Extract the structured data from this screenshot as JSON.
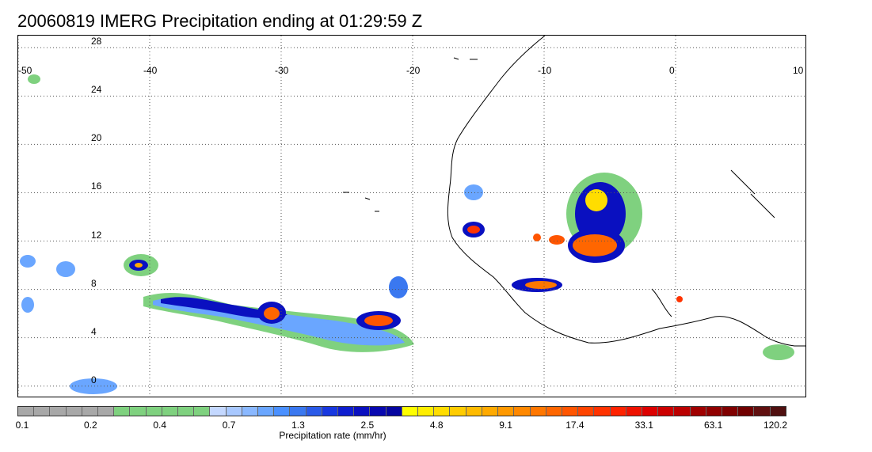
{
  "title": "20060819 IMERG Precipitation ending at 01:29:59 Z",
  "map": {
    "lon_range": [
      -50,
      10
    ],
    "lat_range": [
      -1,
      29
    ],
    "lat_labels": [
      "28",
      "24",
      "20",
      "16",
      "12",
      "8",
      "4",
      "0"
    ],
    "lat_values": [
      28,
      24,
      20,
      16,
      12,
      8,
      4,
      0
    ],
    "lon_labels": [
      "-50",
      "-40",
      "-30",
      "-20",
      "-10",
      "0",
      "10"
    ],
    "lon_values": [
      -50,
      -40,
      -30,
      -20,
      -10,
      0,
      10
    ],
    "gridlines": "dotted",
    "coastline_color": "#000000"
  },
  "colorbar": {
    "unit_label": "Precipitation rate (mm/hr)",
    "tick_labels": [
      "0.1",
      "0.2",
      "0.4",
      "0.7",
      "1.3",
      "2.5",
      "4.8",
      "9.1",
      "17.4",
      "33.1",
      "63.1",
      "120.2"
    ],
    "colors": [
      "#a8a8a8",
      "#a8a8a8",
      "#a8a8a8",
      "#a8a8a8",
      "#a8a8a8",
      "#a8a8a8",
      "#7fd17f",
      "#7fd17f",
      "#7fd17f",
      "#7fd17f",
      "#7fd17f",
      "#7fd17f",
      "#c4d8ff",
      "#a8c8ff",
      "#8ab8ff",
      "#6aa6ff",
      "#4a90ff",
      "#3a78f0",
      "#2a5ae8",
      "#1838e0",
      "#0e1ed0",
      "#0a10c0",
      "#0808b0",
      "#0606a0",
      "#ffff00",
      "#ffee00",
      "#ffdd00",
      "#ffcc00",
      "#ffbb00",
      "#ffaa00",
      "#ff9900",
      "#ff8800",
      "#ff7700",
      "#ff6600",
      "#ff5500",
      "#ff4400",
      "#ff3300",
      "#ff2200",
      "#ee1100",
      "#dd0000",
      "#cc0000",
      "#bb0000",
      "#a00000",
      "#900000",
      "#800000",
      "#700000",
      "#601010",
      "#501010"
    ]
  },
  "chart_data": {
    "type": "heatmap",
    "title": "20060819 IMERG Precipitation ending at 01:29:59 Z",
    "xlabel": "",
    "ylabel": "",
    "colorbar_label": "Precipitation rate (mm/hr)",
    "colorbar_ticks": [
      0.1,
      0.2,
      0.4,
      0.7,
      1.3,
      2.5,
      4.8,
      9.1,
      17.4,
      33.1,
      63.1,
      120.2
    ],
    "xlim": [
      -50,
      10
    ],
    "ylim": [
      -1,
      29
    ],
    "precip_cells": [
      {
        "lon": -34.5,
        "lat": 7.5,
        "intensity": 2.5
      },
      {
        "lon": -30.5,
        "lat": 6.8,
        "intensity": 17.4
      },
      {
        "lon": -28.0,
        "lat": 6.2,
        "intensity": 4.8
      },
      {
        "lon": -22.5,
        "lat": 6.5,
        "intensity": 33.1
      },
      {
        "lon": -24.0,
        "lat": 6.0,
        "intensity": 9.1
      },
      {
        "lon": -38.5,
        "lat": 8.0,
        "intensity": 4.8
      },
      {
        "lon": -40.5,
        "lat": 11.5,
        "intensity": 4.8
      },
      {
        "lon": -5.2,
        "lat": 16.5,
        "intensity": 9.1
      },
      {
        "lon": -5.5,
        "lat": 13.0,
        "intensity": 33.1
      },
      {
        "lon": -9.8,
        "lat": 9.3,
        "intensity": 9.1
      },
      {
        "lon": -15.0,
        "lat": 14.0,
        "intensity": 17.4
      },
      {
        "lon": -16.0,
        "lat": 17.0,
        "intensity": 1.3
      },
      {
        "lon": -46.0,
        "lat": 0.5,
        "intensity": 0.7
      },
      {
        "lon": -47.5,
        "lat": 10.8,
        "intensity": 1.3
      }
    ]
  }
}
